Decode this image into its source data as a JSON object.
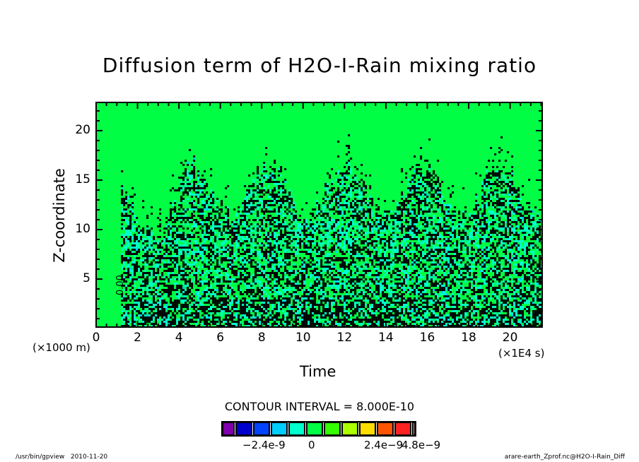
{
  "chart_data": {
    "type": "heatmap",
    "title": "Diffusion term of H2O-I-Rain mixing ratio",
    "xlabel": "Time",
    "ylabel": "Z-coordinate",
    "x_unit": "(×1E4 s)",
    "y_unit": "(×1000 m)",
    "xlim": [
      0,
      21.55
    ],
    "ylim": [
      0.15,
      22.85
    ],
    "x_ticks": [
      "0",
      "2",
      "4",
      "6",
      "8",
      "10",
      "12",
      "14",
      "16",
      "18",
      "20"
    ],
    "y_ticks": [
      "5",
      "10",
      "15",
      "20"
    ],
    "contour_interval": "CONTOUR INTERVAL = 8.000E-10",
    "contour_label": "0.00",
    "colorbar": {
      "colors": [
        "#7f00aa",
        "#0000cc",
        "#0044ff",
        "#00ccff",
        "#00ffcc",
        "#00ff44",
        "#33ff00",
        "#aaff00",
        "#ffdd00",
        "#ff5500",
        "#ff2222",
        "#ff9999"
      ],
      "tick_labels": [
        "-2.4e-9",
        "0",
        "2.4e-9",
        "4.8e-9"
      ]
    },
    "description_values": {
      "background_level": 0,
      "active_region_z_max": 17,
      "active_start_time": 1.2
    }
  },
  "footer": {
    "left": "/usr/bin/gpview   2010-11-20",
    "right": "arare-earth_Zprof.nc@H2O-I-Rain_Diff"
  }
}
